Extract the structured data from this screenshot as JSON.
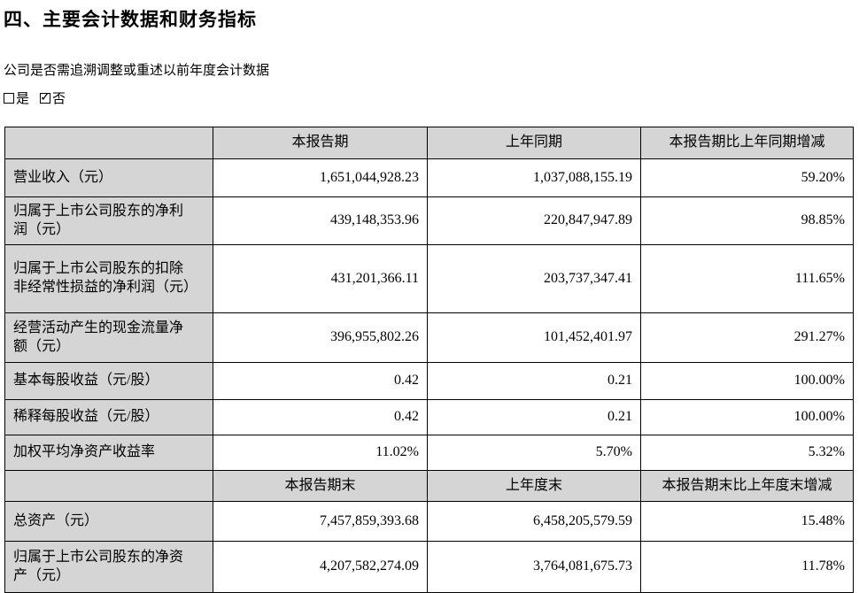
{
  "doc": {
    "title": "四、主要会计数据和财务指标",
    "question": "公司是否需追溯调整或重述以前年度会计数据",
    "option_yes": "是",
    "option_no": "否",
    "check_glyph": "✓"
  },
  "table": {
    "header_period": [
      "",
      "本报告期",
      "上年同期",
      "本报告期比上年同期增减"
    ],
    "rows_period": [
      {
        "label": "营业收入（元）",
        "current": "1,651,044,928.23",
        "prior": "1,037,088,155.19",
        "change": "59.20%"
      },
      {
        "label": "归属于上市公司股东的净利润（元）",
        "current": "439,148,353.96",
        "prior": "220,847,947.89",
        "change": "98.85%"
      },
      {
        "label": "归属于上市公司股东的扣除非经常性损益的净利润（元）",
        "current": "431,201,366.11",
        "prior": "203,737,347.41",
        "change": "111.65%"
      },
      {
        "label": "经营活动产生的现金流量净额（元）",
        "current": "396,955,802.26",
        "prior": "101,452,401.97",
        "change": "291.27%"
      },
      {
        "label": "基本每股收益（元/股）",
        "current": "0.42",
        "prior": "0.21",
        "change": "100.00%"
      },
      {
        "label": "稀释每股收益（元/股）",
        "current": "0.42",
        "prior": "0.21",
        "change": "100.00%"
      },
      {
        "label": "加权平均净资产收益率",
        "current": "11.02%",
        "prior": "5.70%",
        "change": "5.32%"
      }
    ],
    "header_yearend": [
      "",
      "本报告期末",
      "上年度末",
      "本报告期末比上年度末增减"
    ],
    "rows_yearend": [
      {
        "label": "总资产（元）",
        "current": "7,457,859,393.68",
        "prior": "6,458,205,579.59",
        "change": "15.48%"
      },
      {
        "label": "归属于上市公司股东的净资产（元）",
        "current": "4,207,582,274.09",
        "prior": "3,764,081,675.73",
        "change": "11.78%"
      }
    ],
    "colors": {
      "header_fill": "#d5d5d5",
      "border": "#000000",
      "text": "#000000"
    }
  }
}
